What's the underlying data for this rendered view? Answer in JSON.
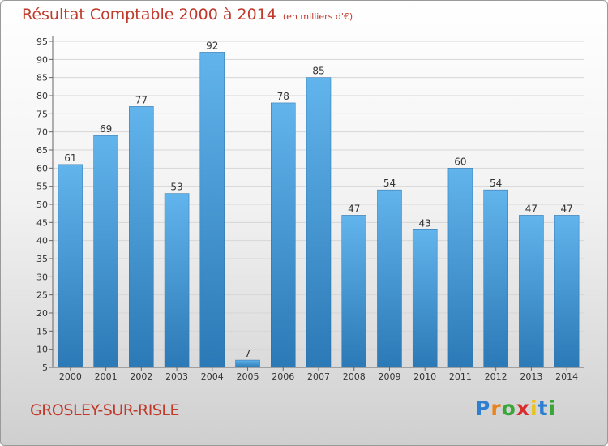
{
  "title": "Résultat Comptable 2000 à 2014",
  "unit": "(en milliers d'€)",
  "commune": "GROSLEY-SUR-RISLE",
  "logo": "Proxiti",
  "colors": {
    "accent": "#c0392b",
    "bar_top": "#62b4ec",
    "bar_bottom": "#2b79b6"
  },
  "chart_data": {
    "type": "bar",
    "categories": [
      "2000",
      "2001",
      "2002",
      "2003",
      "2004",
      "2005",
      "2006",
      "2007",
      "2008",
      "2009",
      "2010",
      "2011",
      "2012",
      "2013",
      "2014"
    ],
    "values": [
      61,
      69,
      77,
      53,
      92,
      7,
      78,
      85,
      47,
      54,
      43,
      60,
      54,
      47,
      47
    ],
    "ylim": [
      5,
      95
    ],
    "yticks": [
      5,
      10,
      15,
      20,
      25,
      30,
      35,
      40,
      45,
      50,
      55,
      60,
      65,
      70,
      75,
      80,
      85,
      90,
      95
    ],
    "grid": true,
    "title": "Résultat Comptable 2000 à 2014",
    "xlabel": "",
    "ylabel": ""
  }
}
